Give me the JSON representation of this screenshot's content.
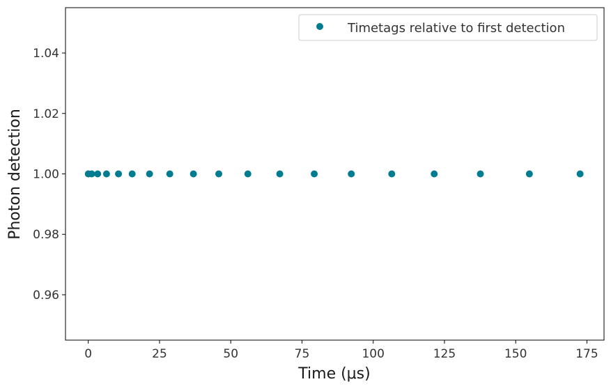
{
  "chart_data": {
    "type": "scatter",
    "xlabel": "Time (μs)",
    "ylabel": "Photon detection",
    "xlim": [
      -8,
      181
    ],
    "ylim": [
      0.945,
      1.055
    ],
    "xticks": [
      0,
      25,
      50,
      75,
      100,
      125,
      150,
      175
    ],
    "yticks": [
      0.96,
      0.98,
      1.0,
      1.02,
      1.04
    ],
    "ytick_labels": [
      "0.96",
      "0.98",
      "1.00",
      "1.02",
      "1.04"
    ],
    "legend_position": "top-right",
    "grid": false,
    "series": [
      {
        "name": "Timetags relative to first detection",
        "color": "#007C91",
        "x": [
          0,
          1.2,
          3.3,
          6.4,
          10.6,
          15.4,
          21.5,
          28.6,
          36.9,
          45.8,
          56.0,
          67.2,
          79.3,
          92.3,
          106.5,
          121.4,
          137.6,
          154.8,
          172.6
        ],
        "y": [
          1,
          1,
          1,
          1,
          1,
          1,
          1,
          1,
          1,
          1,
          1,
          1,
          1,
          1,
          1,
          1,
          1,
          1,
          1
        ]
      }
    ]
  }
}
